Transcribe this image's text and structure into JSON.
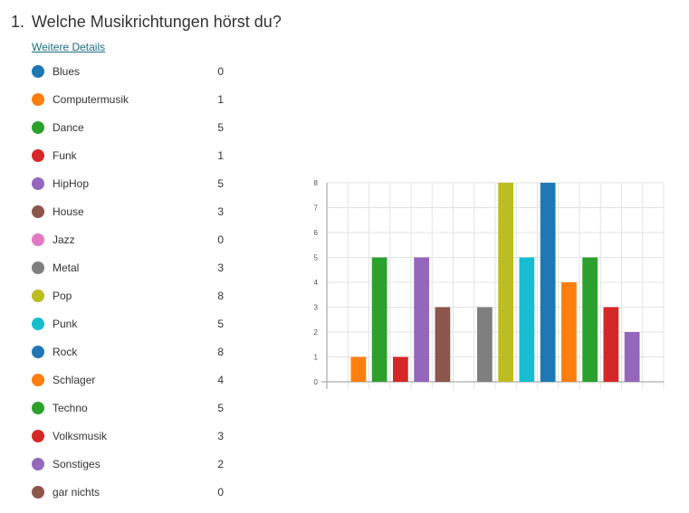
{
  "question": {
    "number": "1.",
    "title": "Welche Musikrichtungen hörst du?",
    "details_link": "Weitere Details"
  },
  "colors": {
    "accent_link": "#1b6e83",
    "grid": "#e3e3e3",
    "axis": "#999999"
  },
  "chart_data": {
    "type": "bar",
    "categories": [
      "Blues",
      "Computermusik",
      "Dance",
      "Funk",
      "HipHop",
      "House",
      "Jazz",
      "Metal",
      "Pop",
      "Punk",
      "Rock",
      "Schlager",
      "Techno",
      "Volksmusik",
      "Sonstiges",
      "gar nichts"
    ],
    "values": [
      0,
      1,
      5,
      1,
      5,
      3,
      0,
      3,
      8,
      5,
      8,
      4,
      5,
      3,
      2,
      0
    ],
    "colors": [
      "#1f77b4",
      "#ff7f0e",
      "#2ca02c",
      "#d62728",
      "#9467bd",
      "#8c564b",
      "#e377c2",
      "#7f7f7f",
      "#bcbd22",
      "#17becf",
      "#1f77b4",
      "#ff7f0e",
      "#2ca02c",
      "#d62728",
      "#9467bd",
      "#8c564b"
    ],
    "ylim": [
      0,
      8
    ],
    "yticks": [
      "0",
      "1",
      "2",
      "3",
      "4",
      "5",
      "6",
      "7",
      "8"
    ],
    "grid": true,
    "legend": "left"
  }
}
